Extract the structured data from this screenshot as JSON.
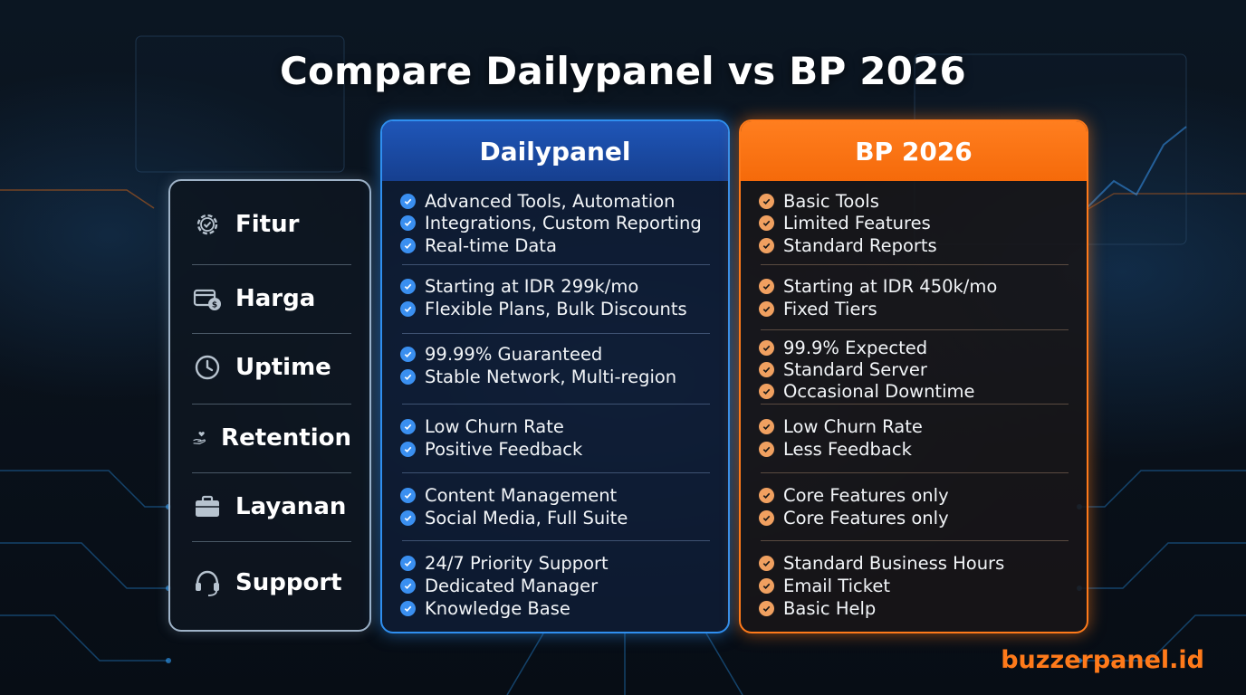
{
  "title": "Compare Dailypanel vs BP 2026",
  "categories": [
    {
      "label": "Fitur",
      "icon": "gear-check-icon"
    },
    {
      "label": "Harga",
      "icon": "price-card-icon"
    },
    {
      "label": "Uptime",
      "icon": "clock-icon"
    },
    {
      "label": "Retention",
      "icon": "heart-hand-icon"
    },
    {
      "label": "Layanan",
      "icon": "briefcase-icon"
    },
    {
      "label": "Support",
      "icon": "headset-icon"
    }
  ],
  "columns": {
    "dailypanel": {
      "title": "Dailypanel",
      "groups": [
        [
          "Advanced Tools, Automation",
          "Integrations, Custom Reporting",
          "Real-time Data"
        ],
        [
          "Starting at IDR 299k/mo",
          "Flexible Plans, Bulk Discounts"
        ],
        [
          "99.99% Guaranteed",
          "Stable Network, Multi-region"
        ],
        [
          "Low Churn Rate",
          "Positive Feedback"
        ],
        [
          "Content Management",
          "Social Media, Full Suite"
        ],
        [
          "24/7 Priority Support",
          "Dedicated Manager",
          "Knowledge Base"
        ]
      ]
    },
    "bp2026": {
      "title": "BP 2026",
      "groups": [
        [
          "Basic Tools",
          "Limited Features",
          "Standard Reports"
        ],
        [
          "Starting at IDR 450k/mo",
          "Fixed Tiers"
        ],
        [
          "99.9% Expected",
          "Standard Server",
          "Occasional Downtime"
        ],
        [
          "Low Churn Rate",
          "Less Feedback"
        ],
        [
          "Core Features only",
          "Core Features only"
        ],
        [
          "Standard Business Hours",
          "Email Ticket",
          "Basic Help"
        ]
      ]
    }
  },
  "brand": "buzzerpanel.id",
  "colors": {
    "dailypanel_accent": "#2f8ff0",
    "bp_accent": "#ff7a1a",
    "brand": "#ff7a1a"
  }
}
